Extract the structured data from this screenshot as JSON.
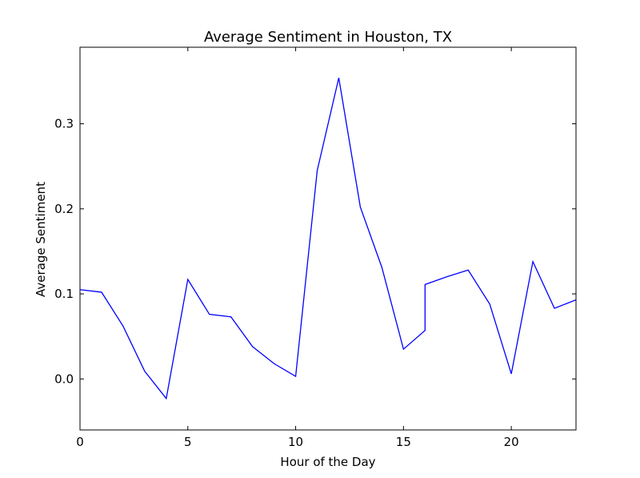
{
  "chart_data": {
    "type": "line",
    "title": "Average Sentiment in Houston, TX",
    "xlabel": "Hour of the Day",
    "ylabel": "Average Sentiment",
    "xlim": [
      0,
      23
    ],
    "ylim": [
      -0.06,
      0.39
    ],
    "x_ticks": [
      0,
      5,
      10,
      15,
      20
    ],
    "x_tick_labels": [
      "0",
      "5",
      "10",
      "15",
      "20"
    ],
    "y_ticks": [
      0.0,
      0.1,
      0.2,
      0.3
    ],
    "y_tick_labels": [
      "0.0",
      "0.1",
      "0.2",
      "0.3"
    ],
    "grid": false,
    "series": [
      {
        "name": "Average Sentiment",
        "color": "#0000ff",
        "x": [
          0,
          1,
          2,
          3,
          4,
          5,
          6,
          7,
          8,
          9,
          10,
          11,
          12,
          13,
          14,
          15,
          16,
          16,
          17,
          18,
          19,
          20,
          21,
          22,
          23
        ],
        "y": [
          0.105,
          0.102,
          0.062,
          0.009,
          -0.023,
          0.117,
          0.076,
          0.073,
          0.038,
          0.018,
          0.003,
          0.245,
          0.354,
          0.202,
          0.131,
          0.035,
          0.057,
          0.111,
          0.12,
          0.128,
          0.088,
          0.006,
          0.138,
          0.083,
          0.093
        ]
      }
    ]
  }
}
